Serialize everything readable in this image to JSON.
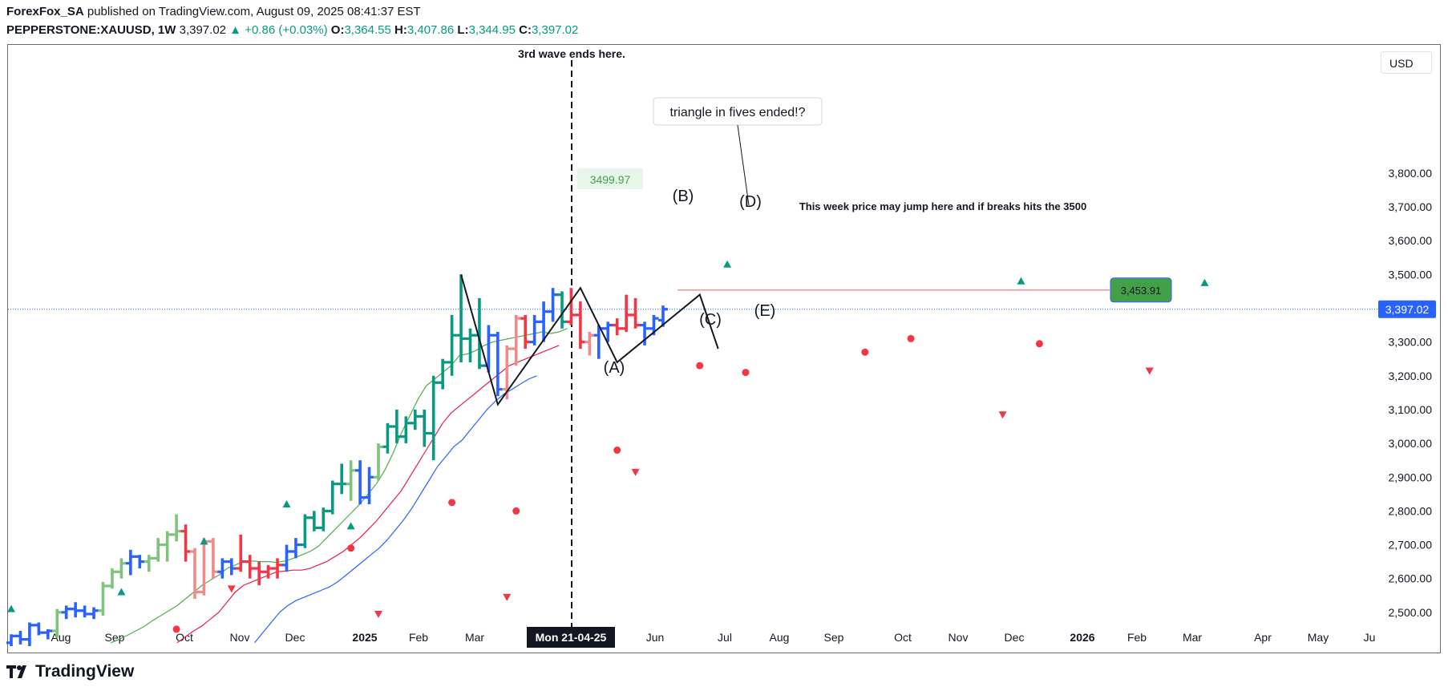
{
  "header": {
    "author": "ForexFox_SA",
    "published": " published on TradingView.com, August 09, 2025 08:41:37 EST",
    "symbol": "PEPPERSTONE:XAUUSD, 1W",
    "price": "3,397.02",
    "change_arrow": "▲",
    "change": "+0.86 (+0.03%)",
    "o_label": "O:",
    "o_value": "3,364.55",
    "h_label": "H:",
    "h_value": "3,407.86",
    "l_label": "L:",
    "l_value": "3,344.95",
    "c_label": "C:",
    "c_value": "3,397.02"
  },
  "currency_button": "USD",
  "brand": "TradingView",
  "colors": {
    "bull": "#089981",
    "bull_light": "#7fc47c",
    "bear": "#f23645",
    "bear_light": "#f28a8a",
    "blue": "#2962ff",
    "ema_fast": "#4caf50",
    "ema_mid": "#e91e4f",
    "ema_slow": "#2962ff",
    "target_label": "#43a047",
    "last_price": "#2962ff"
  },
  "chart_data": {
    "type": "ohlc",
    "ylim": [
      2400,
      3850
    ],
    "y_ticks": [
      "2,500.00",
      "2,600.00",
      "2,700.00",
      "2,800.00",
      "2,900.00",
      "3,000.00",
      "3,100.00",
      "3,200.00",
      "3,300.00",
      "3,400.00",
      "3,500.00",
      "3,600.00",
      "3,700.00",
      "3,800.00"
    ],
    "x_labels": [
      "Aug",
      "Sep",
      "Oct",
      "Nov",
      "Dec",
      "2025",
      "Feb",
      "Mar",
      "Mon 21-04-25",
      "Jun",
      "Jul",
      "Aug",
      "Sep",
      "Oct",
      "Nov",
      "Dec",
      "2026",
      "Feb",
      "Mar",
      "Apr",
      "May",
      "Ju"
    ],
    "bold_x_labels": [
      "2025",
      "2026"
    ],
    "highlight_x_label": "Mon 21-04-25",
    "last_price_label": "3,397.02",
    "last_price": 3397.02,
    "target_label": "3,453.91",
    "target_price": 3453.91,
    "labels": {
      "wave_end": "3rd wave ends here.",
      "triangle_note": "triangle in fives ended!?",
      "week_note": "This week price may jump here and if breaks hits the 3500",
      "high_marker": "3499.97",
      "wave_a": "(A)",
      "wave_b": "(B)",
      "wave_c": "(C)",
      "wave_d": "(D)",
      "wave_e": "(E)"
    },
    "bars": [
      [
        2410,
        2435,
        2400,
        2430,
        "blue"
      ],
      [
        2430,
        2445,
        2405,
        2420,
        "blue"
      ],
      [
        2420,
        2470,
        2400,
        2462,
        "blue"
      ],
      [
        2462,
        2470,
        2432,
        2440,
        "blue"
      ],
      [
        2440,
        2450,
        2420,
        2445,
        "blue"
      ],
      [
        2445,
        2510,
        2425,
        2500,
        "bull_light"
      ],
      [
        2500,
        2520,
        2480,
        2510,
        "blue"
      ],
      [
        2510,
        2530,
        2485,
        2505,
        "blue"
      ],
      [
        2505,
        2520,
        2485,
        2495,
        "blue"
      ],
      [
        2495,
        2515,
        2480,
        2505,
        "blue"
      ],
      [
        2505,
        2590,
        2490,
        2578,
        "bull_light"
      ],
      [
        2578,
        2630,
        2570,
        2620,
        "bull_light"
      ],
      [
        2620,
        2660,
        2600,
        2645,
        "bull_light"
      ],
      [
        2645,
        2685,
        2610,
        2665,
        "blue"
      ],
      [
        2665,
        2670,
        2630,
        2650,
        "blue"
      ],
      [
        2650,
        2670,
        2620,
        2660,
        "bull_light"
      ],
      [
        2660,
        2720,
        2650,
        2700,
        "bull_light"
      ],
      [
        2700,
        2740,
        2650,
        2730,
        "bull_light"
      ],
      [
        2730,
        2790,
        2710,
        2740,
        "bull_light"
      ],
      [
        2740,
        2760,
        2650,
        2680,
        "bear"
      ],
      [
        2680,
        2690,
        2540,
        2560,
        "bear_light"
      ],
      [
        2560,
        2720,
        2550,
        2710,
        "bear_light"
      ],
      [
        2710,
        2720,
        2600,
        2620,
        "bear_light"
      ],
      [
        2620,
        2660,
        2600,
        2650,
        "blue"
      ],
      [
        2650,
        2660,
        2610,
        2630,
        "blue"
      ],
      [
        2630,
        2730,
        2620,
        2650,
        "bear"
      ],
      [
        2650,
        2670,
        2600,
        2630,
        "bear"
      ],
      [
        2630,
        2650,
        2580,
        2620,
        "bear"
      ],
      [
        2620,
        2640,
        2600,
        2630,
        "bear"
      ],
      [
        2630,
        2660,
        2600,
        2640,
        "bear"
      ],
      [
        2640,
        2700,
        2620,
        2680,
        "blue"
      ],
      [
        2680,
        2720,
        2660,
        2700,
        "blue"
      ],
      [
        2700,
        2790,
        2690,
        2780,
        "bull"
      ],
      [
        2780,
        2800,
        2740,
        2750,
        "bull"
      ],
      [
        2750,
        2810,
        2740,
        2800,
        "bull"
      ],
      [
        2800,
        2890,
        2790,
        2880,
        "bull"
      ],
      [
        2880,
        2940,
        2850,
        2880,
        "bull"
      ],
      [
        2880,
        2950,
        2830,
        2920,
        "bull_light"
      ],
      [
        2920,
        2950,
        2820,
        2840,
        "blue"
      ],
      [
        2840,
        2930,
        2820,
        2900,
        "blue"
      ],
      [
        2900,
        3000,
        2890,
        2990,
        "bull_light"
      ],
      [
        2990,
        3060,
        2970,
        3050,
        "bull"
      ],
      [
        3050,
        3100,
        3000,
        3020,
        "bull"
      ],
      [
        3020,
        3080,
        3000,
        3060,
        "bull"
      ],
      [
        3060,
        3100,
        3040,
        3080,
        "bull"
      ],
      [
        3080,
        3100,
        2990,
        3030,
        "bull"
      ],
      [
        3030,
        3200,
        2950,
        3180,
        "bull"
      ],
      [
        3180,
        3250,
        3160,
        3240,
        "bull"
      ],
      [
        3240,
        3380,
        3200,
        3320,
        "bull"
      ],
      [
        3320,
        3500,
        3240,
        3310,
        "bull"
      ],
      [
        3310,
        3340,
        3240,
        3320,
        "bull"
      ],
      [
        3320,
        3430,
        3220,
        3230,
        "bull"
      ],
      [
        3230,
        3350,
        3210,
        3320,
        "blue"
      ],
      [
        3320,
        3330,
        3140,
        3160,
        "blue"
      ],
      [
        3160,
        3290,
        3130,
        3280,
        "bear_light"
      ],
      [
        3280,
        3380,
        3230,
        3370,
        "bear_light"
      ],
      [
        3370,
        3380,
        3280,
        3300,
        "bear"
      ],
      [
        3300,
        3380,
        3290,
        3360,
        "blue"
      ],
      [
        3360,
        3420,
        3300,
        3390,
        "blue"
      ],
      [
        3390,
        3460,
        3360,
        3440,
        "blue"
      ],
      [
        3440,
        3450,
        3340,
        3360,
        "bull"
      ],
      [
        3360,
        3460,
        3350,
        3380,
        "bear"
      ],
      [
        3380,
        3420,
        3280,
        3300,
        "bear"
      ],
      [
        3300,
        3330,
        3260,
        3320,
        "bear_light"
      ],
      [
        3320,
        3350,
        3250,
        3340,
        "blue"
      ],
      [
        3340,
        3360,
        3300,
        3350,
        "blue"
      ],
      [
        3350,
        3370,
        3320,
        3340,
        "bear"
      ],
      [
        3340,
        3440,
        3330,
        3380,
        "bear"
      ],
      [
        3380,
        3430,
        3340,
        3350,
        "bear"
      ],
      [
        3350,
        3360,
        3290,
        3340,
        "blue"
      ],
      [
        3340,
        3380,
        3320,
        3370,
        "blue"
      ],
      [
        3364.55,
        3407.86,
        3344.95,
        3397.02,
        "blue"
      ]
    ],
    "ema_fast": [
      2410,
      2420,
      2432,
      2445,
      2458,
      2475,
      2490,
      2505,
      2520,
      2540,
      2560,
      2580,
      2595,
      2610,
      2630,
      2640,
      2650,
      2652,
      2650,
      2650,
      2648,
      2652,
      2660,
      2670,
      2680,
      2695,
      2720,
      2745,
      2770,
      2795,
      2820,
      2850,
      2880,
      2920,
      2970,
      3030,
      3080,
      3130,
      3170,
      3190,
      3210,
      3230,
      3260,
      3265,
      3275,
      3290,
      3300,
      3305,
      3310,
      3315,
      3320,
      3325,
      3330,
      3325,
      3330,
      3340
    ],
    "ema_mid": [
      2410,
      2428,
      2445,
      2460,
      2480,
      2500,
      2530,
      2560,
      2580,
      2590,
      2600,
      2610,
      2620,
      2622,
      2625,
      2625,
      2630,
      2640,
      2650,
      2665,
      2680,
      2700,
      2720,
      2745,
      2770,
      2800,
      2830,
      2860,
      2900,
      2940,
      2980,
      3020,
      3060,
      3090,
      3110,
      3130,
      3150,
      3170,
      3190,
      3210,
      3230,
      3240,
      3250,
      3260,
      3270,
      3280,
      3290
    ],
    "ema_slow": [
      2410,
      2440,
      2470,
      2500,
      2520,
      2535,
      2545,
      2555,
      2565,
      2575,
      2590,
      2610,
      2630,
      2650,
      2670,
      2690,
      2715,
      2745,
      2775,
      2810,
      2850,
      2890,
      2930,
      2960,
      2990,
      3010,
      3040,
      3070,
      3100,
      3125,
      3145,
      3160,
      3175,
      3190,
      3200
    ],
    "markers_up": [
      [
        0,
        2510
      ],
      [
        12,
        2560
      ],
      [
        21,
        2710
      ],
      [
        30,
        2820
      ],
      [
        37,
        2755
      ],
      [
        78,
        3530
      ],
      [
        110,
        3480
      ],
      [
        130,
        3475
      ]
    ],
    "markers_down": [
      [
        24,
        2570
      ],
      [
        40,
        2495
      ],
      [
        54,
        2545
      ],
      [
        68,
        2915
      ],
      [
        108,
        3085
      ],
      [
        124,
        3215
      ]
    ],
    "dots": [
      [
        18,
        2450
      ],
      [
        37,
        2690
      ],
      [
        48,
        2825
      ],
      [
        55,
        2800
      ],
      [
        66,
        2980
      ],
      [
        75,
        3230
      ],
      [
        80,
        3210
      ],
      [
        93,
        3270
      ],
      [
        98,
        3310
      ],
      [
        112,
        3295
      ]
    ]
  }
}
